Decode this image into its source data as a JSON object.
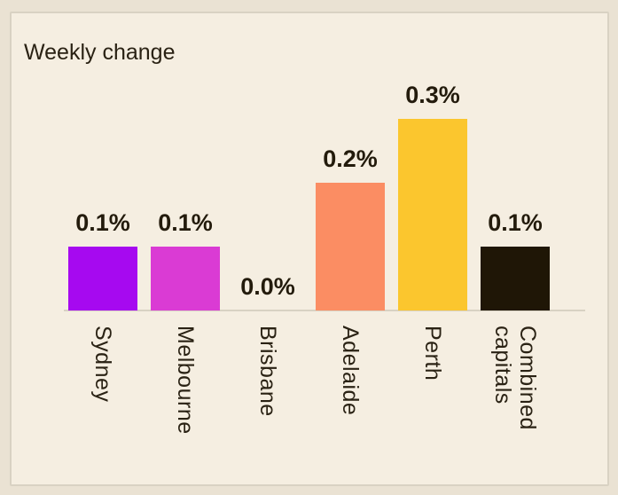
{
  "chart_data": {
    "type": "bar",
    "title": "Weekly change",
    "categories": [
      "Sydney",
      "Melbourne",
      "Brisbane",
      "Adelaide",
      "Perth",
      "Combined\ncapitals"
    ],
    "values": [
      0.1,
      0.1,
      0.0,
      0.2,
      0.3,
      0.1
    ],
    "value_labels": [
      "0.1%",
      "0.1%",
      "0.0%",
      "0.2%",
      "0.3%",
      "0.1%"
    ],
    "unit": "percent",
    "ylim": [
      0,
      0.3
    ],
    "grid": "off",
    "legend": "none",
    "bar_colors": [
      "#A609F0",
      "#DA3BD4",
      "#999999",
      "#FB8D63",
      "#FBC62E",
      "#1F1606"
    ],
    "axis_line_color": "#D8D2C3",
    "xlabel": "",
    "ylabel": ""
  },
  "style_colors": {
    "page_background": "#EAE2D3",
    "card_background": "#F5EEE1",
    "card_border": "#D9D2C3",
    "text": "#2A2214",
    "value_text": "#231B0C"
  }
}
